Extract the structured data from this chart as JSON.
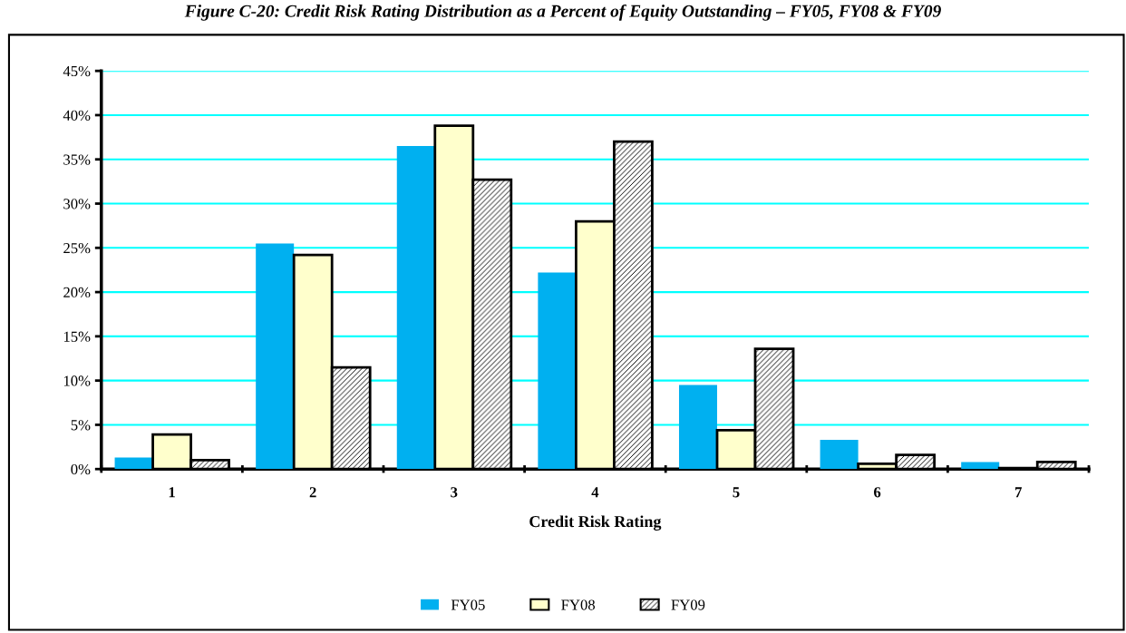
{
  "chart_data": {
    "type": "bar",
    "title": "Figure C-20: Credit Risk Rating Distribution as a Percent of Equity Outstanding – FY05, FY08 & FY09",
    "xlabel": "Credit Risk Rating",
    "categories": [
      "1",
      "2",
      "3",
      "4",
      "5",
      "6",
      "7"
    ],
    "series": [
      {
        "name": "FY05",
        "color": "#00b0f0",
        "values": [
          1.3,
          25.5,
          36.5,
          22.2,
          9.5,
          3.3,
          0.8
        ]
      },
      {
        "name": "FY08",
        "color": "#ffffcc",
        "values": [
          3.9,
          24.2,
          38.8,
          28.0,
          4.4,
          0.6,
          0.1
        ]
      },
      {
        "name": "FY09",
        "color": "#000000",
        "values": [
          1.0,
          11.5,
          32.7,
          37.0,
          13.6,
          1.6,
          0.8
        ]
      }
    ],
    "ylim": [
      0,
      45
    ],
    "yticks": [
      {
        "value": 0,
        "label": "0%"
      },
      {
        "value": 5,
        "label": "5%"
      },
      {
        "value": 10,
        "label": "10%"
      },
      {
        "value": 15,
        "label": "15%"
      },
      {
        "value": 20,
        "label": "20%"
      },
      {
        "value": 25,
        "label": "25%"
      },
      {
        "value": 30,
        "label": "30%"
      },
      {
        "value": 35,
        "label": "35%"
      },
      {
        "value": 40,
        "label": "40%"
      },
      {
        "value": 45,
        "label": "45%"
      }
    ],
    "grid": "y",
    "legend": "bottom"
  }
}
